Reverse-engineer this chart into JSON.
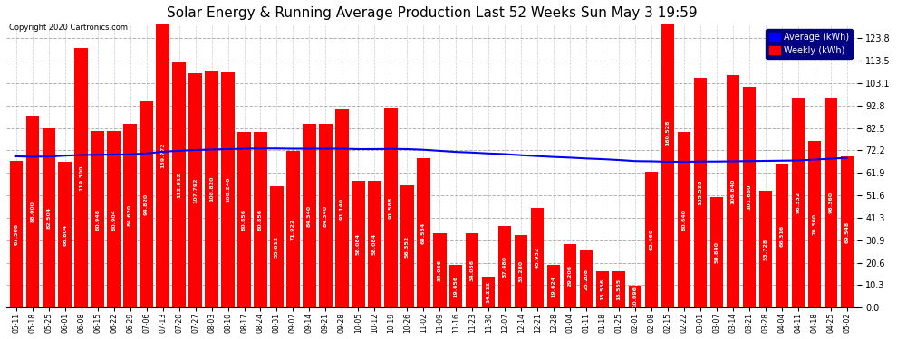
{
  "title": "Solar Energy & Running Average Production Last 52 Weeks Sun May 3 19:59",
  "copyright": "Copyright 2020 Cartronics.com",
  "legend_avg": "Average (kWh)",
  "legend_weekly": "Weekly (kWh)",
  "bar_color": "#ff0000",
  "avg_line_color": "#0000ff",
  "background_color": "#ffffff",
  "plot_bg_color": "#ffffff",
  "yticks": [
    0.0,
    10.3,
    20.6,
    30.9,
    41.3,
    51.6,
    61.9,
    72.2,
    82.5,
    92.8,
    103.1,
    113.5,
    123.8
  ],
  "ylim": [
    0,
    130
  ],
  "categories": [
    "05-11",
    "05-18",
    "05-25",
    "06-01",
    "06-08",
    "06-15",
    "06-22",
    "06-29",
    "07-06",
    "07-13",
    "07-20",
    "07-27",
    "08-03",
    "08-10",
    "08-17",
    "08-24",
    "08-31",
    "09-07",
    "09-14",
    "09-21",
    "09-28",
    "10-05",
    "10-12",
    "10-19",
    "10-26",
    "11-02",
    "11-09",
    "11-16",
    "11-23",
    "11-30",
    "12-07",
    "12-14",
    "12-21",
    "12-28",
    "01-04",
    "01-11",
    "01-18",
    "01-25",
    "02-01",
    "02-08",
    "02-15",
    "02-22",
    "03-01",
    "03-07",
    "03-14",
    "03-21",
    "03-28",
    "04-04",
    "04-11",
    "04-18",
    "04-25",
    "05-02"
  ],
  "weekly_values": [
    67.508,
    88.0,
    82.504,
    66.804,
    119.3,
    80.948,
    80.904,
    84.62,
    94.82,
    139.772,
    112.812,
    107.792,
    108.82,
    108.24,
    80.856,
    80.856,
    55.612,
    71.922,
    84.34,
    84.34,
    91.14,
    58.084,
    58.084,
    91.588,
    56.352,
    68.534,
    34.056,
    19.656,
    34.056,
    14.212,
    37.48,
    33.28,
    45.932,
    19.624,
    29.206,
    26.208,
    16.556,
    16.555,
    10.096,
    62.46,
    160.528,
    80.64,
    105.528,
    50.84,
    106.84,
    101.66,
    53.728,
    66.316,
    96.332,
    76.36,
    96.36,
    69.548
  ],
  "avg_values": [
    69.5,
    69.3,
    69.4,
    69.8,
    70.1,
    70.2,
    70.3,
    70.4,
    70.8,
    71.6,
    72.0,
    72.4,
    72.6,
    72.8,
    73.0,
    73.1,
    73.1,
    73.0,
    73.0,
    73.0,
    73.0,
    72.8,
    72.8,
    72.9,
    72.8,
    72.5,
    72.0,
    71.5,
    71.2,
    70.8,
    70.5,
    70.0,
    69.6,
    69.2,
    68.9,
    68.5,
    68.2,
    67.8,
    67.3,
    67.2,
    67.0,
    67.0,
    67.1,
    67.1,
    67.2,
    67.3,
    67.4,
    67.5,
    67.6,
    68.0,
    68.4,
    68.8
  ]
}
